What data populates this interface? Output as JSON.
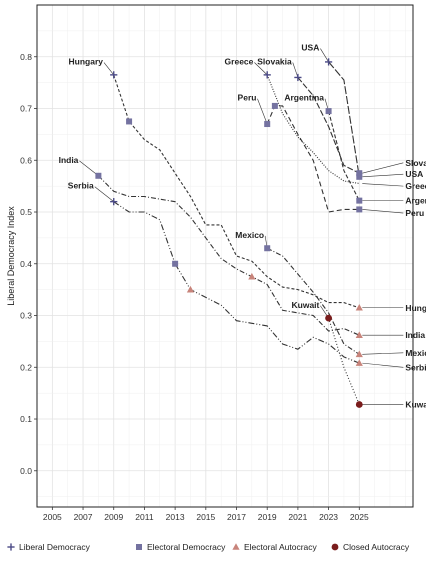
{
  "chart_data": {
    "type": "line",
    "title": "",
    "xlabel": "",
    "ylabel": "Liberal Democracy Index",
    "xlim": [
      2004,
      2028.5
    ],
    "ylim": [
      -0.07,
      0.9
    ],
    "x_ticks": [
      2005,
      2007,
      2009,
      2011,
      2013,
      2015,
      2017,
      2019,
      2021,
      2023,
      2025
    ],
    "y_ticks": [
      0.0,
      0.1,
      0.2,
      0.3,
      0.4,
      0.5,
      0.6,
      0.7,
      0.8
    ],
    "y_tick_labels": [
      "0.0",
      "0.1",
      "0.2",
      "0.3",
      "0.4",
      "0.5",
      "0.6",
      "0.7",
      "0.8"
    ],
    "grid": true,
    "legend_position": "bottom",
    "regime_types": [
      {
        "key": "liberal",
        "name": "Liberal Democracy",
        "marker": "plus",
        "color": "#4b4a86"
      },
      {
        "key": "electoral",
        "name": "Electoral Democracy",
        "marker": "square",
        "color": "#7472a0"
      },
      {
        "key": "elec_aut",
        "name": "Electoral Autocracy",
        "marker": "triangle",
        "color": "#c8847b"
      },
      {
        "key": "closed_aut",
        "name": "Closed Autocracy",
        "marker": "circle",
        "color": "#7a1c1c"
      }
    ],
    "series": [
      {
        "name": "Hungary",
        "dash": "3,2",
        "points": [
          [
            2009,
            0.765
          ],
          [
            2010,
            0.675
          ],
          [
            2011,
            0.64
          ],
          [
            2012,
            0.62
          ],
          [
            2013,
            0.575
          ],
          [
            2014,
            0.53
          ],
          [
            2015,
            0.475
          ],
          [
            2016,
            0.475
          ],
          [
            2017,
            0.415
          ],
          [
            2018,
            0.405
          ],
          [
            2019,
            0.375
          ],
          [
            2020,
            0.355
          ],
          [
            2021,
            0.35
          ],
          [
            2022,
            0.34
          ],
          [
            2023,
            0.325
          ],
          [
            2024,
            0.325
          ],
          [
            2025,
            0.315
          ]
        ],
        "markers": [
          {
            "x": 2009,
            "y": 0.765,
            "type": "liberal"
          },
          {
            "x": 2010,
            "y": 0.675,
            "type": "electoral"
          },
          {
            "x": 2025,
            "y": 0.315,
            "type": "elec_aut"
          }
        ],
        "start_label": {
          "text": "Hungary",
          "x": 2008.3,
          "y": 0.785,
          "anchor": "end"
        },
        "end_label": {
          "text": "Hungary",
          "y": 0.315
        }
      },
      {
        "name": "India",
        "dash": "5,2,1,2",
        "points": [
          [
            2008,
            0.57
          ],
          [
            2009,
            0.54
          ],
          [
            2010,
            0.53
          ],
          [
            2011,
            0.53
          ],
          [
            2012,
            0.525
          ],
          [
            2013,
            0.52
          ],
          [
            2014,
            0.49
          ],
          [
            2015,
            0.45
          ],
          [
            2016,
            0.41
          ],
          [
            2017,
            0.39
          ],
          [
            2018,
            0.375
          ],
          [
            2019,
            0.36
          ],
          [
            2020,
            0.31
          ],
          [
            2021,
            0.305
          ],
          [
            2022,
            0.3
          ],
          [
            2023,
            0.27
          ],
          [
            2024,
            0.275
          ],
          [
            2025,
            0.262
          ]
        ],
        "markers": [
          {
            "x": 2008,
            "y": 0.57,
            "type": "electoral"
          },
          {
            "x": 2018,
            "y": 0.375,
            "type": "elec_aut"
          },
          {
            "x": 2025,
            "y": 0.262,
            "type": "elec_aut"
          }
        ],
        "start_label": {
          "text": "India",
          "x": 2006.7,
          "y": 0.595,
          "anchor": "end"
        },
        "end_label": {
          "text": "India",
          "y": 0.262
        }
      },
      {
        "name": "Serbia",
        "dash": "6,2,1,2,1,2",
        "points": [
          [
            2009,
            0.52
          ],
          [
            2010,
            0.5
          ],
          [
            2011,
            0.5
          ],
          [
            2012,
            0.485
          ],
          [
            2013,
            0.4
          ],
          [
            2014,
            0.35
          ],
          [
            2015,
            0.335
          ],
          [
            2016,
            0.32
          ],
          [
            2017,
            0.29
          ],
          [
            2018,
            0.285
          ],
          [
            2019,
            0.28
          ],
          [
            2020,
            0.245
          ],
          [
            2021,
            0.235
          ],
          [
            2022,
            0.258
          ],
          [
            2023,
            0.245
          ],
          [
            2024,
            0.22
          ],
          [
            2025,
            0.208
          ]
        ],
        "markers": [
          {
            "x": 2009,
            "y": 0.52,
            "type": "liberal"
          },
          {
            "x": 2013,
            "y": 0.4,
            "type": "electoral"
          },
          {
            "x": 2014,
            "y": 0.35,
            "type": "elec_aut"
          },
          {
            "x": 2025,
            "y": 0.208,
            "type": "elec_aut"
          }
        ],
        "start_label": {
          "text": "Serbia",
          "x": 2007.7,
          "y": 0.545,
          "anchor": "end"
        },
        "end_label": {
          "text": "Serbia",
          "y": 0.2
        }
      },
      {
        "name": "Mexico",
        "dash": "5,2,1,2",
        "points": [
          [
            2019,
            0.43
          ],
          [
            2020,
            0.415
          ],
          [
            2021,
            0.38
          ],
          [
            2022,
            0.345
          ],
          [
            2023,
            0.305
          ],
          [
            2024,
            0.245
          ],
          [
            2025,
            0.225
          ]
        ],
        "markers": [
          {
            "x": 2019,
            "y": 0.43,
            "type": "electoral"
          },
          {
            "x": 2025,
            "y": 0.225,
            "type": "elec_aut"
          }
        ],
        "start_label": {
          "text": "Mexico",
          "x": 2018.8,
          "y": 0.45,
          "anchor": "end"
        },
        "end_label": {
          "text": "Mexico",
          "y": 0.228
        }
      },
      {
        "name": "Kuwait",
        "dash": "1,2",
        "points": [
          [
            2023,
            0.295
          ],
          [
            2024,
            0.2
          ],
          [
            2025,
            0.128
          ]
        ],
        "markers": [
          {
            "x": 2023,
            "y": 0.295,
            "type": "closed_aut"
          },
          {
            "x": 2025,
            "y": 0.128,
            "type": "closed_aut"
          }
        ],
        "start_label": {
          "text": "Kuwait",
          "x": 2022.4,
          "y": 0.315,
          "anchor": "end"
        },
        "end_label": {
          "text": "Kuwait",
          "y": 0.128
        }
      },
      {
        "name": "Greece",
        "dash": "1,1.5",
        "points": [
          [
            2019,
            0.765
          ],
          [
            2020,
            0.69
          ],
          [
            2021,
            0.645
          ],
          [
            2022,
            0.615
          ],
          [
            2023,
            0.58
          ],
          [
            2024,
            0.56
          ],
          [
            2025,
            0.555
          ]
        ],
        "markers": [
          {
            "x": 2019,
            "y": 0.765,
            "type": "liberal"
          }
        ],
        "start_label": {
          "text": "Greece",
          "x": 2018.1,
          "y": 0.785,
          "anchor": "end"
        },
        "end_label": {
          "text": "Greece",
          "y": 0.55
        }
      },
      {
        "name": "Slovakia",
        "dash": "6,2",
        "points": [
          [
            2021,
            0.76
          ],
          [
            2022,
            0.725
          ],
          [
            2023,
            0.665
          ],
          [
            2024,
            0.59
          ],
          [
            2025,
            0.575
          ]
        ],
        "markers": [
          {
            "x": 2021,
            "y": 0.76,
            "type": "liberal"
          },
          {
            "x": 2025,
            "y": 0.575,
            "type": "electoral"
          }
        ],
        "start_label": {
          "text": "Slovakia",
          "x": 2020.6,
          "y": 0.785,
          "anchor": "end"
        },
        "end_label": {
          "text": "Slovakia",
          "y": 0.595
        }
      },
      {
        "name": "USA",
        "dash": "8,2",
        "points": [
          [
            2023,
            0.79
          ],
          [
            2024,
            0.755
          ],
          [
            2025,
            0.568
          ]
        ],
        "markers": [
          {
            "x": 2023,
            "y": 0.79,
            "type": "liberal"
          },
          {
            "x": 2025,
            "y": 0.568,
            "type": "electoral"
          }
        ],
        "start_label": {
          "text": "USA",
          "x": 2022.4,
          "y": 0.812,
          "anchor": "end"
        },
        "end_label": {
          "text": "USA",
          "y": 0.573
        }
      },
      {
        "name": "Argentina",
        "dash": "4,2",
        "points": [
          [
            2023,
            0.695
          ],
          [
            2024,
            0.58
          ],
          [
            2025,
            0.522
          ]
        ],
        "markers": [
          {
            "x": 2023,
            "y": 0.695,
            "type": "electoral"
          },
          {
            "x": 2025,
            "y": 0.522,
            "type": "electoral"
          }
        ],
        "start_label": {
          "text": "Argentina",
          "x": 2022.7,
          "y": 0.715,
          "anchor": "end"
        },
        "end_label": {
          "text": "Argentina",
          "y": 0.522
        }
      },
      {
        "name": "Peru",
        "dash": "5,3",
        "points": [
          [
            2019,
            0.67
          ],
          [
            2019.5,
            0.705
          ],
          [
            2020,
            0.705
          ],
          [
            2021,
            0.65
          ],
          [
            2022,
            0.6
          ],
          [
            2023,
            0.5
          ],
          [
            2024,
            0.505
          ],
          [
            2025,
            0.505
          ]
        ],
        "markers": [
          {
            "x": 2019,
            "y": 0.67,
            "type": "electoral"
          },
          {
            "x": 2019.5,
            "y": 0.705,
            "type": "electoral"
          },
          {
            "x": 2025,
            "y": 0.505,
            "type": "electoral"
          }
        ],
        "start_label": {
          "text": "Peru",
          "x": 2018.3,
          "y": 0.715,
          "anchor": "end"
        },
        "end_label": {
          "text": "Peru",
          "y": 0.498
        }
      }
    ]
  }
}
